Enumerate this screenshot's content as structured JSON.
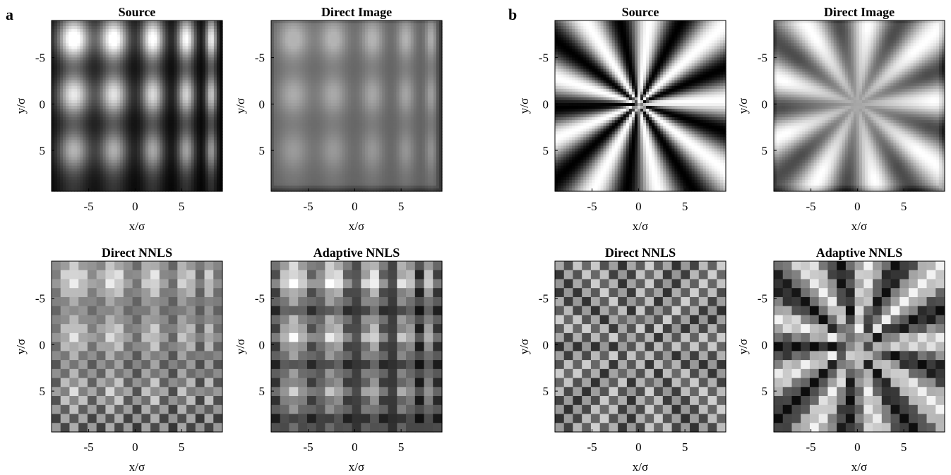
{
  "panel_labels": [
    "a",
    "b"
  ],
  "chart_data": [
    {
      "type": "heatmap",
      "panel": "a",
      "title": "Source",
      "xlabel": "x/σ",
      "ylabel": "y/σ",
      "xticks": [
        "-5",
        "0",
        "5"
      ],
      "yticks": [
        "-5",
        "0",
        "5"
      ],
      "xlim": [
        -9,
        9.4
      ],
      "ylim": [
        -9,
        9.4
      ],
      "colormap": "gray",
      "grid_size": 60,
      "pattern": "gaussian-lattice"
    },
    {
      "type": "heatmap",
      "panel": "a",
      "title": "Direct Image",
      "xlabel": "x/σ",
      "ylabel": "y/σ",
      "xticks": [
        "-5",
        "0",
        "5"
      ],
      "yticks": [
        "-5",
        "0",
        "5"
      ],
      "xlim": [
        -9,
        9.4
      ],
      "ylim": [
        -9,
        9.4
      ],
      "colormap": "gray",
      "grid_size": 60,
      "pattern": "gaussian-lattice-blurred"
    },
    {
      "type": "heatmap",
      "panel": "a",
      "title": "Direct NNLS",
      "xlabel": "x/σ",
      "ylabel": "y/σ",
      "xticks": [
        "-5",
        "0",
        "5"
      ],
      "yticks": [
        "-5",
        "0",
        "5"
      ],
      "xlim": [
        -9,
        9.4
      ],
      "ylim": [
        -9,
        9.4
      ],
      "colormap": "gray",
      "grid_size": 19,
      "pattern": "gaussian-lattice-checker"
    },
    {
      "type": "heatmap",
      "panel": "a",
      "title": "Adaptive NNLS",
      "xlabel": "x/σ",
      "ylabel": "y/σ",
      "xticks": [
        "-5",
        "0",
        "5"
      ],
      "yticks": [
        "-5",
        "0",
        "5"
      ],
      "xlim": [
        -9,
        9.4
      ],
      "ylim": [
        -9,
        9.4
      ],
      "colormap": "gray",
      "grid_size": 19,
      "pattern": "gaussian-lattice-adaptive"
    },
    {
      "type": "heatmap",
      "panel": "b",
      "title": "Source",
      "xlabel": "x/σ",
      "ylabel": "y/σ",
      "xticks": [
        "-5",
        "0",
        "5"
      ],
      "yticks": [
        "-5",
        "0",
        "5"
      ],
      "xlim": [
        -9,
        9.4
      ],
      "ylim": [
        -9,
        9.4
      ],
      "colormap": "gray",
      "grid_size": 60,
      "pattern": "siemens-star"
    },
    {
      "type": "heatmap",
      "panel": "b",
      "title": "Direct Image",
      "xlabel": "x/σ",
      "ylabel": "y/σ",
      "xticks": [
        "-5",
        "0",
        "5"
      ],
      "yticks": [
        "-5",
        "0",
        "5"
      ],
      "xlim": [
        -9,
        9.4
      ],
      "ylim": [
        -9,
        9.4
      ],
      "colormap": "gray",
      "grid_size": 60,
      "pattern": "siemens-star-blurred"
    },
    {
      "type": "heatmap",
      "panel": "b",
      "title": "Direct NNLS",
      "xlabel": "x/σ",
      "ylabel": "y/σ",
      "xticks": [
        "-5",
        "0",
        "5"
      ],
      "yticks": [
        "-5",
        "0",
        "5"
      ],
      "xlim": [
        -9,
        9.4
      ],
      "ylim": [
        -9,
        9.4
      ],
      "colormap": "gray",
      "grid_size": 19,
      "pattern": "siemens-star-checker"
    },
    {
      "type": "heatmap",
      "panel": "b",
      "title": "Adaptive NNLS",
      "xlabel": "x/σ",
      "ylabel": "y/σ",
      "xticks": [
        "-5",
        "0",
        "5"
      ],
      "yticks": [
        "-5",
        "0",
        "5"
      ],
      "xlim": [
        -9,
        9.4
      ],
      "ylim": [
        -9,
        9.4
      ],
      "colormap": "gray",
      "grid_size": 19,
      "pattern": "siemens-star-adaptive"
    }
  ]
}
